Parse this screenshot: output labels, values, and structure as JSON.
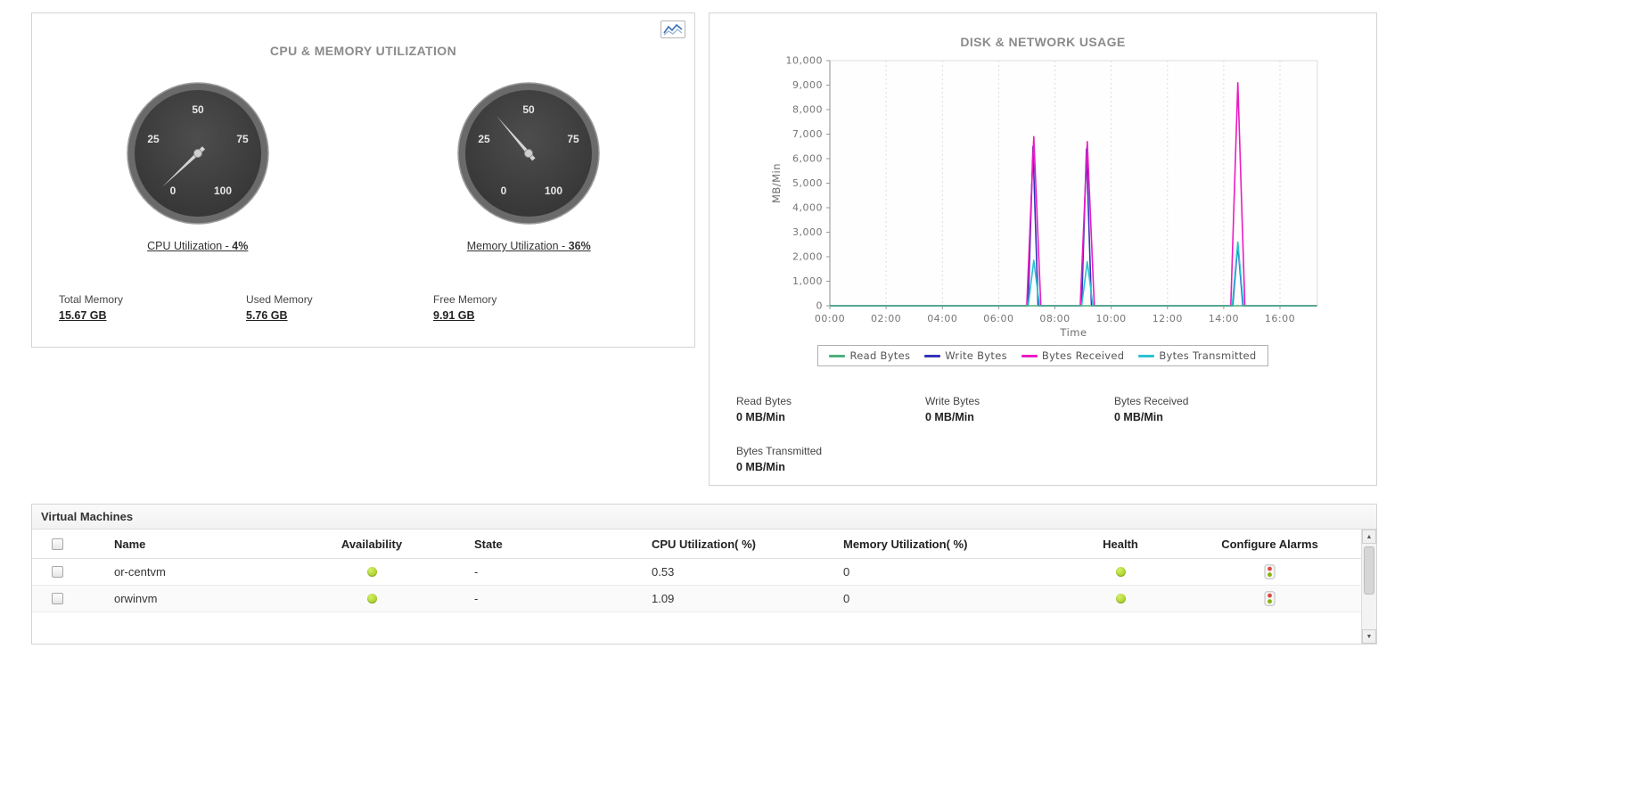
{
  "left_panel": {
    "title": "CPU & MEMORY UTILIZATION",
    "gauges": [
      {
        "title_prefix": "CPU Utilization - ",
        "title_value": "4%",
        "value": 4,
        "tick_labels": [
          "0",
          "25",
          "50",
          "75",
          "100"
        ]
      },
      {
        "title_prefix": "Memory Utilization - ",
        "title_value": "36%",
        "value": 36,
        "tick_labels": [
          "0",
          "25",
          "50",
          "75",
          "100"
        ]
      }
    ],
    "memory_stats": [
      {
        "label": "Total Memory",
        "value": "15.67 GB"
      },
      {
        "label": "Used Memory",
        "value": "5.76 GB"
      },
      {
        "label": "Free Memory",
        "value": "9.91 GB"
      }
    ]
  },
  "right_panel": {
    "title": "DISK & NETWORK USAGE",
    "stats": [
      {
        "label": "Read Bytes",
        "value": "0 MB/Min"
      },
      {
        "label": "Write Bytes",
        "value": "0 MB/Min"
      },
      {
        "label": "Bytes Received",
        "value": "0 MB/Min"
      },
      {
        "label": "Bytes Transmitted",
        "value": "0 MB/Min"
      }
    ]
  },
  "chart_data": {
    "type": "line",
    "title": "DISK & NETWORK USAGE",
    "xlabel": "Time",
    "ylabel": "MB/Min",
    "ylim": [
      0,
      10000
    ],
    "y_tick_step": 1000,
    "x_range_hours": [
      0,
      17.33
    ],
    "x_tick_labels": [
      "00:00",
      "02:00",
      "04:00",
      "06:00",
      "08:00",
      "10:00",
      "12:00",
      "14:00",
      "16:00"
    ],
    "grid": "vertical-dotted",
    "legend_position": "bottom",
    "series": [
      {
        "name": "Read Bytes",
        "color": "#4daf7c",
        "points": [
          [
            0,
            0
          ],
          [
            17.3,
            0
          ]
        ]
      },
      {
        "name": "Write Bytes",
        "color": "#3333bb",
        "points": [
          [
            0,
            0
          ],
          [
            7.05,
            0
          ],
          [
            7.22,
            6500
          ],
          [
            7.4,
            0
          ],
          [
            8.95,
            0
          ],
          [
            9.12,
            6400
          ],
          [
            9.3,
            0
          ],
          [
            14.32,
            0
          ],
          [
            14.5,
            2500
          ],
          [
            14.68,
            0
          ],
          [
            17.3,
            0
          ]
        ]
      },
      {
        "name": "Bytes Received",
        "color": "#e91cc3",
        "points": [
          [
            0,
            0
          ],
          [
            7.0,
            0
          ],
          [
            7.25,
            6900
          ],
          [
            7.5,
            0
          ],
          [
            8.9,
            0
          ],
          [
            9.15,
            6700
          ],
          [
            9.4,
            0
          ],
          [
            14.25,
            0
          ],
          [
            14.5,
            9100
          ],
          [
            14.75,
            0
          ],
          [
            17.3,
            0
          ]
        ]
      },
      {
        "name": "Bytes Transmitted",
        "color": "#2bc2d2",
        "points": [
          [
            0,
            0
          ],
          [
            7.05,
            0
          ],
          [
            7.25,
            1850
          ],
          [
            7.45,
            0
          ],
          [
            8.95,
            0
          ],
          [
            9.15,
            1800
          ],
          [
            9.35,
            0
          ],
          [
            14.3,
            0
          ],
          [
            14.5,
            2600
          ],
          [
            14.7,
            0
          ],
          [
            17.3,
            0
          ]
        ]
      }
    ]
  },
  "vm_table": {
    "title": "Virtual Machines",
    "columns": [
      "Name",
      "Availability",
      "State",
      "CPU Utilization( %)",
      "Memory Utilization( %)",
      "Health",
      "Configure Alarms"
    ],
    "rows": [
      {
        "name": "or-centvm",
        "availability": "up",
        "state": "-",
        "cpu": "0.53",
        "memory": "0",
        "health": "up"
      },
      {
        "name": "orwinvm",
        "availability": "up",
        "state": "-",
        "cpu": "1.09",
        "memory": "0",
        "health": "up"
      }
    ]
  },
  "colors": {
    "status_green": "#9bc40b",
    "status_green_light": "#d3ef6a",
    "alarm_red": "#e2483d",
    "alarm_green": "#86b300",
    "gauge_face": "#3d3d3d",
    "needle": "#d4d4d4"
  }
}
